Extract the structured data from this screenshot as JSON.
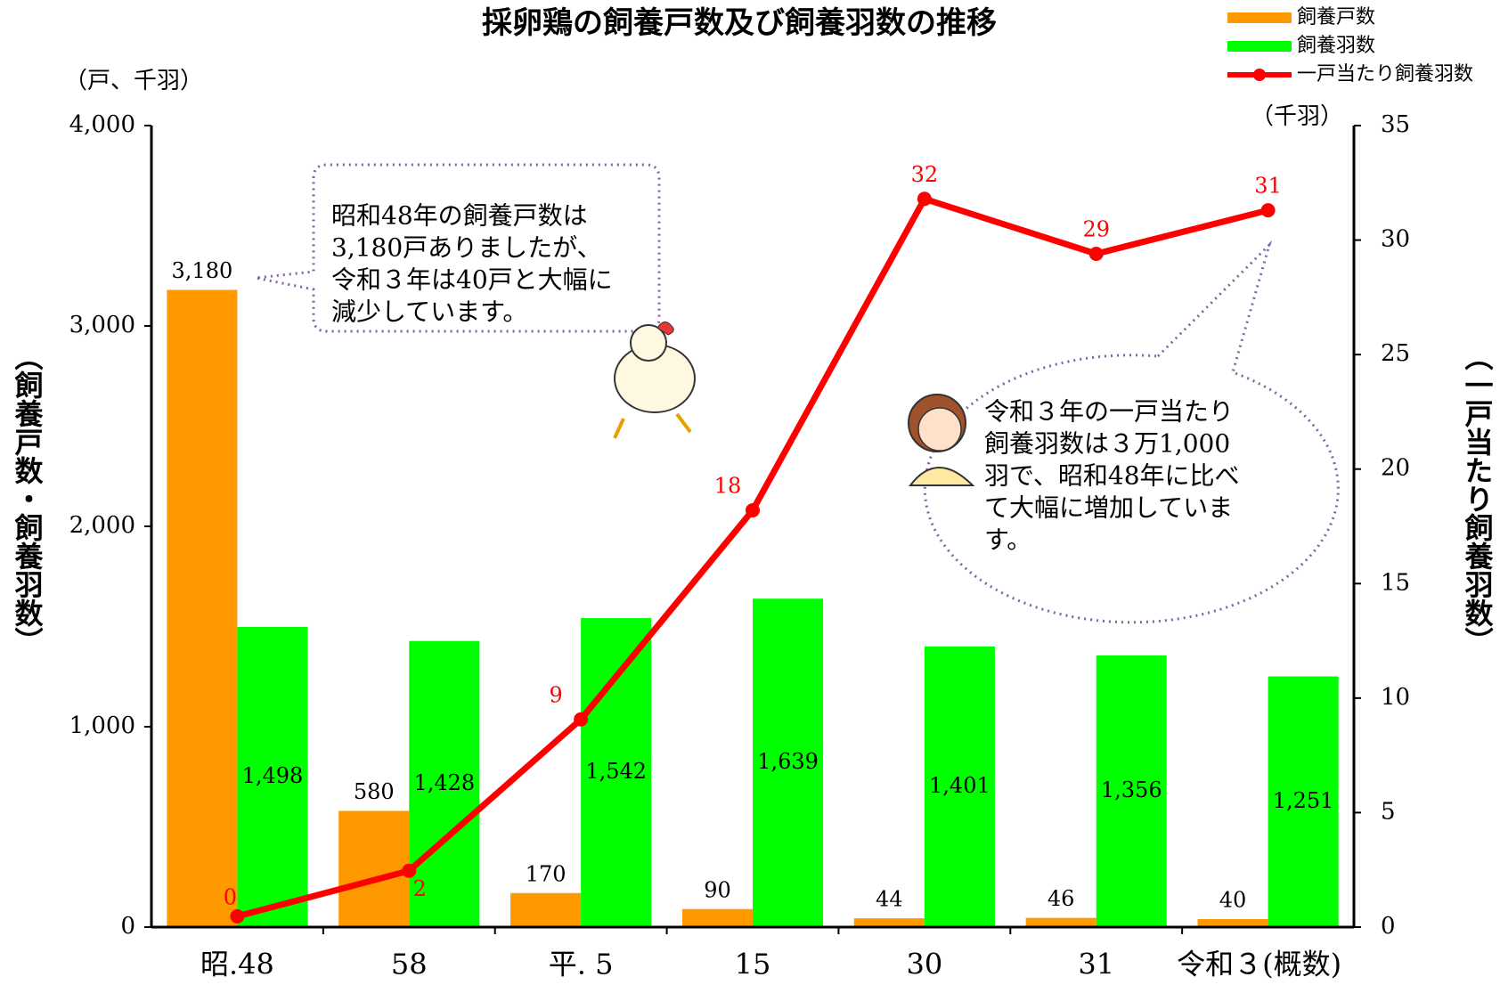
{
  "chart_data": {
    "type": "bar-line",
    "title": "採卵鶏の飼養戸数及び飼養羽数の推移",
    "y_unit": "（戸、千羽）",
    "y2_unit": "（千羽）",
    "y_label": "（飼養戸数・飼養羽数）",
    "y2_label": "（一戸当たり飼養羽数）",
    "categories": [
      "昭.48",
      "58",
      "平. 5",
      "15",
      "30",
      "31",
      "令和３(概数)"
    ],
    "series": [
      {
        "name": "飼養戸数",
        "type": "bar",
        "color": "#ff9900",
        "values": [
          3180,
          580,
          170,
          90,
          44,
          46,
          40
        ],
        "value_labels": [
          "3,180",
          "580",
          "170",
          "90",
          "44",
          "46",
          "40"
        ]
      },
      {
        "name": "飼養羽数",
        "type": "bar",
        "color": "#00ff00",
        "values": [
          1498,
          1428,
          1542,
          1639,
          1401,
          1356,
          1251
        ],
        "value_labels": [
          "1,498",
          "1,428",
          "1,542",
          "1,639",
          "1,401",
          "1,356",
          "1,251"
        ]
      },
      {
        "name": "一戸当たり飼養羽数",
        "type": "line",
        "axis": "y2",
        "color": "#ff0000",
        "values": [
          0.47,
          2.46,
          9.07,
          18.2,
          31.8,
          29.4,
          31.3
        ],
        "value_labels": [
          "0",
          "2",
          "9",
          "18",
          "32",
          "29",
          "31"
        ]
      }
    ],
    "ylim": [
      0,
      4000
    ],
    "yticks": [
      0,
      {
        "value": 1000,
        "label": "1,000"
      },
      {
        "value": 2000,
        "label": "2,000"
      },
      {
        "value": 3000,
        "label": "3,000"
      },
      {
        "value": 4000,
        "label": "4,000"
      }
    ],
    "y2lim": [
      0,
      35
    ],
    "y2ticks": [
      0,
      5,
      10,
      15,
      20,
      25,
      30,
      35
    ],
    "legend": "top-right",
    "annotations": [
      {
        "lines": [
          "昭和48年の飼養戸数は",
          "3,180戸ありましたが、",
          "令和３年は40戸と大幅に",
          "減少しています。"
        ]
      },
      {
        "lines": [
          "令和３年の一戸当たり",
          "飼養羽数は３万1,000",
          "羽で、昭和48年に比べ",
          "て大幅に増加していま",
          "す。"
        ]
      }
    ]
  }
}
